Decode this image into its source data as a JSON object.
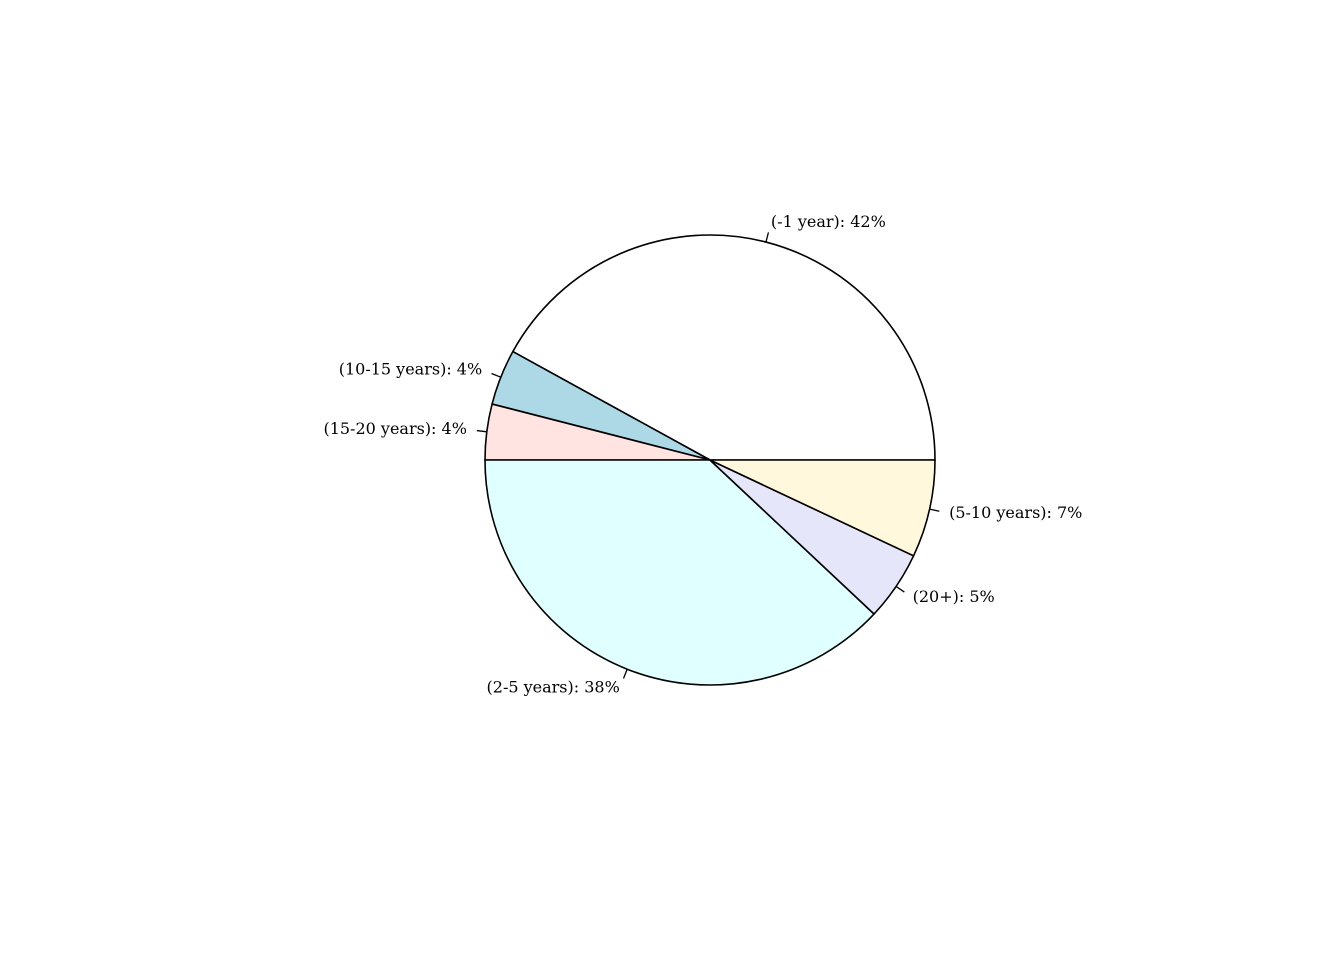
{
  "chart_data": {
    "type": "pie",
    "title": "",
    "start_angle_deg": 0,
    "direction": "counterclockwise",
    "legend": "none",
    "slices": [
      {
        "label": "(-1 year): 42%",
        "value": 42,
        "color": "#FFFFFF"
      },
      {
        "label": "(10-15 years): 4%",
        "value": 4,
        "color": "#ADD8E6"
      },
      {
        "label": "(15-20 years): 4%",
        "value": 4,
        "color": "#FFE4E1"
      },
      {
        "label": "(2-5 years): 38%",
        "value": 38,
        "color": "#E0FFFF"
      },
      {
        "label": "(20+): 5%",
        "value": 5,
        "color": "#E6E6FA"
      },
      {
        "label": "(5-10 years): 7%",
        "value": 7,
        "color": "#FFF8DC"
      }
    ]
  }
}
